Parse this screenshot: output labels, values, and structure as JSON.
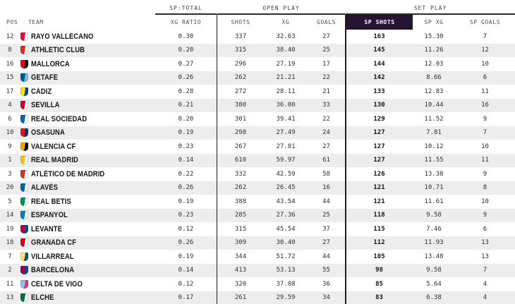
{
  "chart_data": {
    "type": "table",
    "column_groups": [
      {
        "label": "SP:TOTAL",
        "span": [
          "xg_ratio"
        ]
      },
      {
        "label": "OPEN PLAY",
        "span": [
          "shots",
          "xg",
          "goals"
        ]
      },
      {
        "label": "SET PLAY",
        "span": [
          "sp_shots",
          "sp_xg",
          "sp_goals"
        ]
      }
    ],
    "columns": {
      "pos": "POS",
      "team": "TEAM",
      "xg_ratio": "XG RATIO",
      "shots": "SHOTS",
      "xg": "XG",
      "goals": "GOALS",
      "sp_shots": "SP SHOTS",
      "sp_xg": "SP XG",
      "sp_goals": "SP GOALS"
    },
    "rows": [
      {
        "pos": "12",
        "team": "RAYO VALLECANO",
        "crest": [
          "#e8112d",
          "#ffffff"
        ],
        "xg_ratio": "0.30",
        "shots": "337",
        "xg": "32.63",
        "goals": "27",
        "sp_shots": "163",
        "sp_xg": "15.30",
        "sp_goals": "7"
      },
      {
        "pos": "8",
        "team": "ATHLETIC CLUB",
        "crest": [
          "#ee2523",
          "#ffffff"
        ],
        "xg_ratio": "0.20",
        "shots": "315",
        "xg": "38.40",
        "goals": "25",
        "sp_shots": "145",
        "sp_xg": "11.26",
        "sp_goals": "12"
      },
      {
        "pos": "16",
        "team": "MALLORCA",
        "crest": [
          "#e20613",
          "#000000"
        ],
        "xg_ratio": "0.27",
        "shots": "296",
        "xg": "27.19",
        "goals": "17",
        "sp_shots": "144",
        "sp_xg": "12.03",
        "sp_goals": "10"
      },
      {
        "pos": "15",
        "team": "GETAFE",
        "crest": [
          "#005999",
          "#74c2e1"
        ],
        "xg_ratio": "0.26",
        "shots": "262",
        "xg": "21.21",
        "goals": "22",
        "sp_shots": "142",
        "sp_xg": "8.66",
        "sp_goals": "6"
      },
      {
        "pos": "17",
        "team": "CÁDIZ",
        "crest": [
          "#ffe500",
          "#0045a0"
        ],
        "xg_ratio": "0.28",
        "shots": "272",
        "xg": "28.11",
        "goals": "21",
        "sp_shots": "133",
        "sp_xg": "12.83",
        "sp_goals": "11"
      },
      {
        "pos": "4",
        "team": "SEVILLA",
        "crest": [
          "#d00027",
          "#ffffff"
        ],
        "xg_ratio": "0.21",
        "shots": "380",
        "xg": "36.00",
        "goals": "33",
        "sp_shots": "130",
        "sp_xg": "10.44",
        "sp_goals": "16"
      },
      {
        "pos": "6",
        "team": "REAL SOCIEDAD",
        "crest": [
          "#0067b1",
          "#ffffff"
        ],
        "xg_ratio": "0.20",
        "shots": "301",
        "xg": "39.41",
        "goals": "22",
        "sp_shots": "129",
        "sp_xg": "11.52",
        "sp_goals": "9"
      },
      {
        "pos": "10",
        "team": "OSASUNA",
        "crest": [
          "#d91a21",
          "#0a346f"
        ],
        "xg_ratio": "0.19",
        "shots": "298",
        "xg": "27.49",
        "goals": "24",
        "sp_shots": "127",
        "sp_xg": "7.81",
        "sp_goals": "7"
      },
      {
        "pos": "9",
        "team": "VALENCIA CF",
        "crest": [
          "#f7a800",
          "#000000"
        ],
        "xg_ratio": "0.23",
        "shots": "267",
        "xg": "27.81",
        "goals": "27",
        "sp_shots": "127",
        "sp_xg": "10.12",
        "sp_goals": "10"
      },
      {
        "pos": "1",
        "team": "REAL MADRID",
        "crest": [
          "#febe10",
          "#ffffff"
        ],
        "xg_ratio": "0.14",
        "shots": "610",
        "xg": "59.97",
        "goals": "61",
        "sp_shots": "127",
        "sp_xg": "11.55",
        "sp_goals": "11"
      },
      {
        "pos": "3",
        "team": "ATLÉTICO DE MADRID",
        "crest": [
          "#cb3524",
          "#ffffff"
        ],
        "xg_ratio": "0.22",
        "shots": "332",
        "xg": "42.59",
        "goals": "58",
        "sp_shots": "126",
        "sp_xg": "13.38",
        "sp_goals": "9"
      },
      {
        "pos": "20",
        "team": "ALAVÉS",
        "crest": [
          "#0761af",
          "#ffffff"
        ],
        "xg_ratio": "0.26",
        "shots": "262",
        "xg": "26.45",
        "goals": "16",
        "sp_shots": "121",
        "sp_xg": "10.71",
        "sp_goals": "8"
      },
      {
        "pos": "5",
        "team": "REAL BETIS",
        "crest": [
          "#00954c",
          "#ffffff"
        ],
        "xg_ratio": "0.19",
        "shots": "388",
        "xg": "43.54",
        "goals": "44",
        "sp_shots": "121",
        "sp_xg": "11.61",
        "sp_goals": "10"
      },
      {
        "pos": "14",
        "team": "ESPANYOL",
        "crest": [
          "#007fc8",
          "#ffffff"
        ],
        "xg_ratio": "0.23",
        "shots": "285",
        "xg": "27.36",
        "goals": "25",
        "sp_shots": "118",
        "sp_xg": "9.58",
        "sp_goals": "9"
      },
      {
        "pos": "19",
        "team": "LEVANTE",
        "crest": [
          "#b4053f",
          "#004f9e"
        ],
        "xg_ratio": "0.12",
        "shots": "315",
        "xg": "45.54",
        "goals": "37",
        "sp_shots": "115",
        "sp_xg": "7.46",
        "sp_goals": "6"
      },
      {
        "pos": "18",
        "team": "GRANADA CF",
        "crest": [
          "#c60b1e",
          "#ffffff"
        ],
        "xg_ratio": "0.26",
        "shots": "309",
        "xg": "30.40",
        "goals": "27",
        "sp_shots": "112",
        "sp_xg": "11.93",
        "sp_goals": "13"
      },
      {
        "pos": "7",
        "team": "VILLARREAL",
        "crest": [
          "#ffe667",
          "#005187"
        ],
        "xg_ratio": "0.19",
        "shots": "344",
        "xg": "51.72",
        "goals": "44",
        "sp_shots": "105",
        "sp_xg": "13.48",
        "sp_goals": "13"
      },
      {
        "pos": "2",
        "team": "BARCELONA",
        "crest": [
          "#a50044",
          "#004d98"
        ],
        "xg_ratio": "0.14",
        "shots": "413",
        "xg": "53.13",
        "goals": "55",
        "sp_shots": "98",
        "sp_xg": "9.58",
        "sp_goals": "7"
      },
      {
        "pos": "11",
        "team": "CELTA DE VIGO",
        "crest": [
          "#8ac3ee",
          "#e5326e"
        ],
        "xg_ratio": "0.12",
        "shots": "320",
        "xg": "37.08",
        "goals": "36",
        "sp_shots": "85",
        "sp_xg": "5.64",
        "sp_goals": "4"
      },
      {
        "pos": "13",
        "team": "ELCHE",
        "crest": [
          "#00684b",
          "#ffffff"
        ],
        "xg_ratio": "0.17",
        "shots": "261",
        "xg": "29.59",
        "goals": "34",
        "sp_shots": "83",
        "sp_xg": "6.38",
        "sp_goals": "4"
      }
    ]
  },
  "ui": {
    "highlighted_column": "sp_shots",
    "colors": {
      "highlight_bg": "#261432",
      "highlight_text": "#ffffff",
      "stripe": "#ededed",
      "rule": "#2b2b2b"
    }
  }
}
